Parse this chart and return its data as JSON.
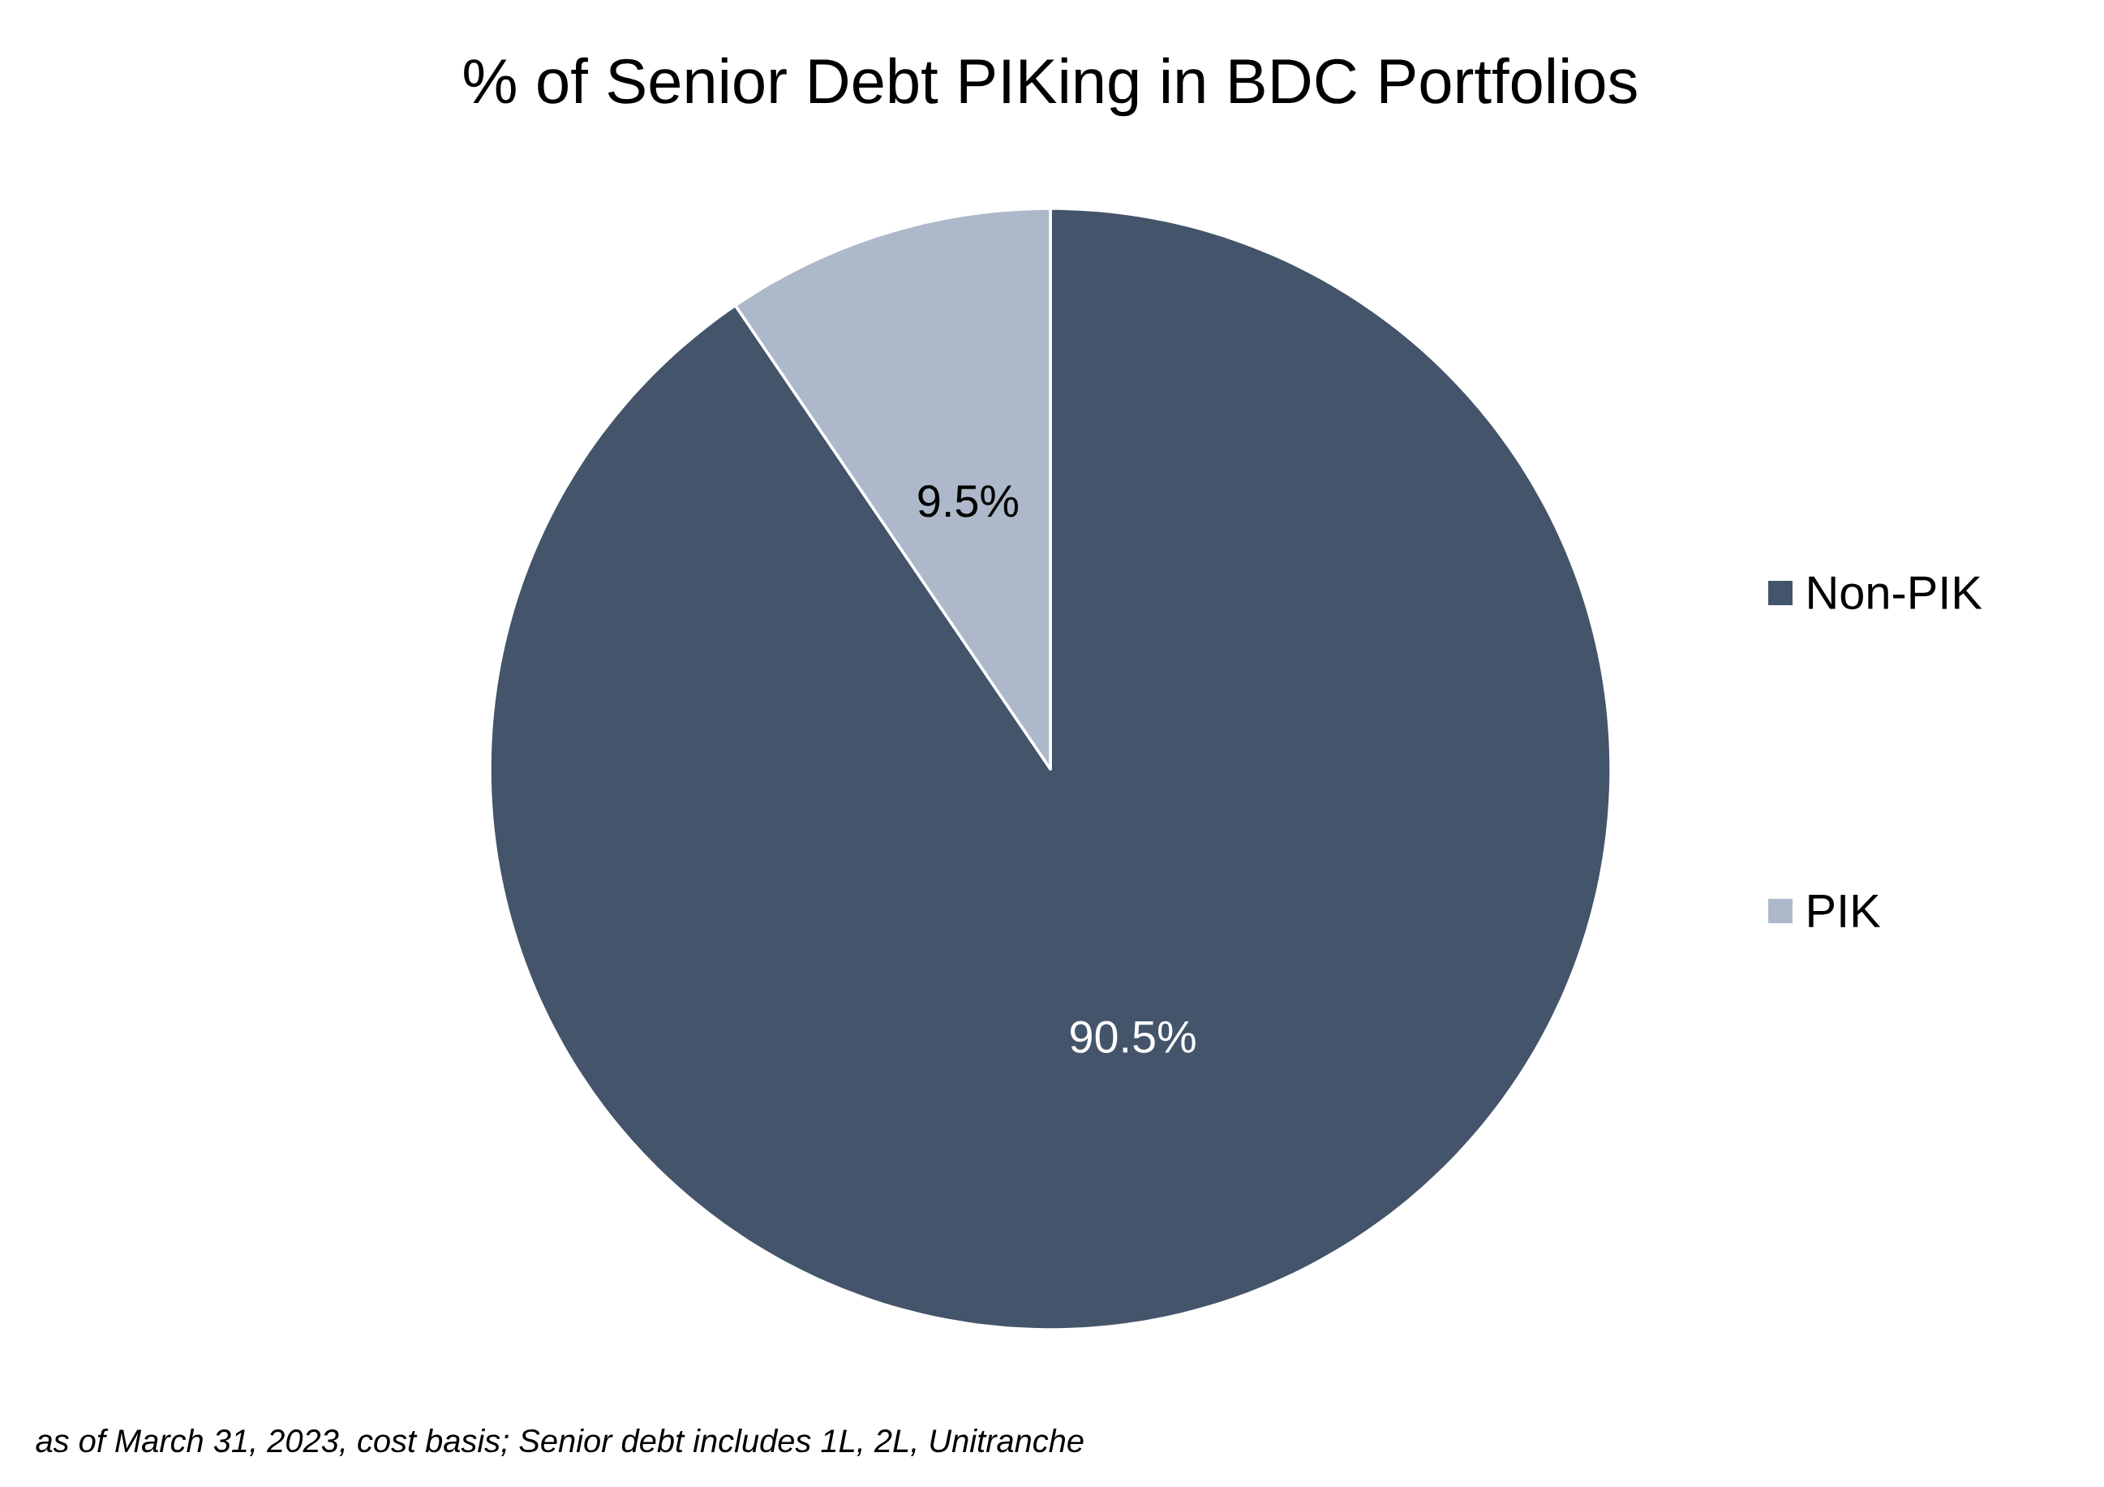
{
  "chart_data": {
    "type": "pie",
    "title": "% of Senior Debt PIKing in BDC Portfolios",
    "categories": [
      "Non-PIK",
      "PIK"
    ],
    "values": [
      90.5,
      9.5
    ],
    "colors": [
      "#44546a",
      "#adb9ca"
    ],
    "value_labels": [
      "90.5%",
      "9.5%"
    ],
    "legend": "right",
    "annotations": [
      "as of March 31, 2023, cost basis; Senior debt includes 1L, 2L, Unitranche"
    ]
  }
}
